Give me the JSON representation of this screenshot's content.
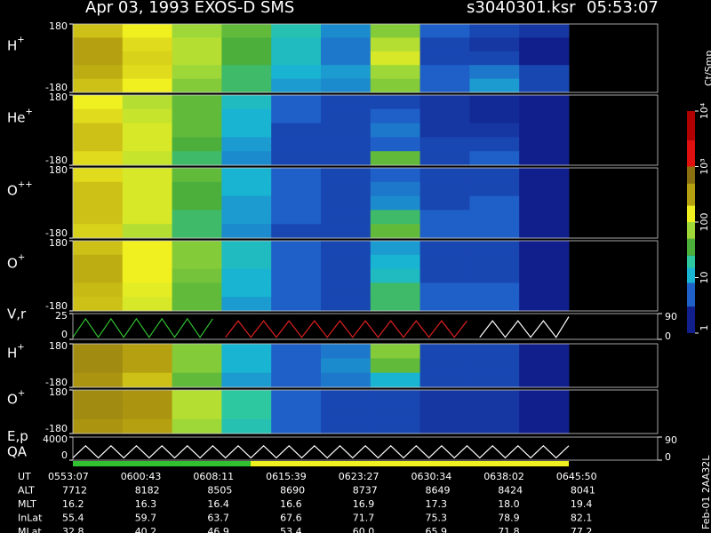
{
  "header": {
    "title": "Apr 03, 1993    EXOS-D SMS",
    "file": "s3040301.ksr",
    "time": "05:53:07"
  },
  "chart_data": [
    {
      "type": "heatmap",
      "label": "H",
      "label_sup": "+",
      "ylim": [
        -180,
        180
      ],
      "yticks": [
        -180,
        180
      ],
      "values": [
        [
          150,
          100,
          50,
          30,
          12,
          5,
          40,
          3,
          2,
          1.5
        ],
        [
          200,
          120,
          60,
          25,
          10,
          4,
          60,
          2,
          1.5,
          1
        ],
        [
          200,
          130,
          60,
          25,
          10,
          4,
          80,
          2,
          2,
          1
        ],
        [
          180,
          120,
          50,
          20,
          8,
          6,
          50,
          3,
          4,
          2
        ],
        [
          150,
          100,
          40,
          20,
          6,
          5,
          40,
          3,
          6,
          2
        ]
      ]
    },
    {
      "type": "heatmap",
      "label": "He",
      "label_sup": "+",
      "ylim": [
        -180,
        180
      ],
      "yticks": [
        -180,
        180
      ],
      "values": [
        [
          100,
          60,
          30,
          10,
          3,
          2,
          2,
          1.5,
          1.2,
          1
        ],
        [
          120,
          70,
          30,
          8,
          3,
          2,
          3,
          1.5,
          1.2,
          1
        ],
        [
          150,
          80,
          30,
          8,
          2,
          2,
          4,
          1.5,
          1.5,
          1
        ],
        [
          150,
          80,
          25,
          6,
          2,
          2,
          3,
          2,
          2,
          1
        ],
        [
          120,
          70,
          20,
          5,
          2,
          2,
          30,
          2,
          3,
          1
        ]
      ]
    },
    {
      "type": "heatmap",
      "label": "O",
      "label_sup": "++",
      "ylim": [
        -180,
        180
      ],
      "yticks": [
        -180,
        180
      ],
      "values": [
        [
          120,
          80,
          30,
          8,
          3,
          2,
          3,
          2,
          2,
          1
        ],
        [
          150,
          80,
          25,
          8,
          3,
          2,
          4,
          2,
          2,
          1
        ],
        [
          150,
          80,
          25,
          6,
          3,
          2,
          5,
          2,
          3,
          1
        ],
        [
          150,
          80,
          20,
          6,
          3,
          2,
          20,
          3,
          3,
          1
        ],
        [
          130,
          60,
          20,
          5,
          2,
          2,
          30,
          3,
          3,
          1
        ]
      ]
    },
    {
      "type": "heatmap",
      "label": "O",
      "label_sup": "+",
      "ylim": [
        -180,
        180
      ],
      "yticks": [
        -180,
        180
      ],
      "values": [
        [
          150,
          100,
          40,
          10,
          3,
          2,
          6,
          2,
          2,
          1
        ],
        [
          180,
          100,
          40,
          10,
          3,
          2,
          8,
          2,
          2,
          1
        ],
        [
          180,
          100,
          35,
          8,
          3,
          2,
          10,
          2,
          2,
          1
        ],
        [
          160,
          90,
          30,
          8,
          3,
          2,
          20,
          3,
          3,
          1
        ],
        [
          150,
          80,
          30,
          6,
          3,
          2,
          20,
          3,
          3,
          1
        ]
      ]
    },
    {
      "type": "line",
      "label": "V,r",
      "ylim": [
        0,
        25
      ],
      "yticks": [
        0,
        25
      ],
      "y2lim": [
        0,
        90
      ],
      "y2ticks": [
        0,
        90
      ],
      "series": [
        {
          "color": "#30c030",
          "values": [
            2,
            20,
            2,
            20,
            2,
            20,
            2,
            20,
            2,
            20,
            2,
            20,
            null,
            null,
            null,
            null,
            null,
            null,
            null,
            null,
            null,
            null,
            null,
            null,
            null,
            null,
            null,
            null,
            null,
            null,
            null,
            null,
            null,
            null,
            null,
            null,
            null,
            null,
            null,
            null
          ]
        },
        {
          "color": "#e02020",
          "values": [
            null,
            null,
            null,
            null,
            null,
            null,
            null,
            null,
            null,
            null,
            null,
            null,
            2,
            18,
            2,
            18,
            2,
            18,
            2,
            18,
            2,
            18,
            2,
            18,
            2,
            18,
            2,
            18,
            2,
            18,
            2,
            18,
            null,
            null,
            null,
            null,
            null,
            null,
            null,
            null
          ]
        },
        {
          "color": "#ffffff",
          "values": [
            null,
            null,
            null,
            null,
            null,
            null,
            null,
            null,
            null,
            null,
            null,
            null,
            null,
            null,
            null,
            null,
            null,
            null,
            null,
            null,
            null,
            null,
            null,
            null,
            null,
            null,
            null,
            null,
            null,
            null,
            null,
            null,
            2,
            18,
            2,
            18,
            2,
            18,
            2,
            22
          ]
        }
      ]
    },
    {
      "type": "heatmap",
      "label": "H",
      "label_sup": "+",
      "ylim": [
        -180,
        180
      ],
      "yticks": [
        -180,
        180
      ],
      "values": [
        [
          300,
          200,
          40,
          8,
          3,
          4,
          40,
          2,
          2,
          1
        ],
        [
          300,
          200,
          40,
          8,
          3,
          5,
          30,
          2,
          2,
          1
        ],
        [
          250,
          150,
          30,
          6,
          3,
          4,
          8,
          2,
          2,
          1
        ]
      ]
    },
    {
      "type": "heatmap",
      "label": "O",
      "label_sup": "+",
      "ylim": [
        -180,
        180
      ],
      "yticks": [
        -180,
        180
      ],
      "values": [
        [
          300,
          250,
          60,
          15,
          3,
          2,
          2,
          1.5,
          1.5,
          1
        ],
        [
          300,
          250,
          60,
          15,
          3,
          2,
          2,
          1.5,
          1.5,
          1
        ],
        [
          250,
          200,
          50,
          12,
          3,
          2,
          2,
          1.5,
          1.5,
          1
        ]
      ]
    },
    {
      "type": "line",
      "label": "E,p",
      "label2": "QA",
      "ylim": [
        0,
        4000
      ],
      "yticks": [
        0,
        4000
      ],
      "y2lim": [
        0,
        90
      ],
      "y2ticks": [
        0,
        90
      ],
      "series": [
        {
          "color": "#ffffff",
          "values": [
            400,
            2500,
            400,
            2500,
            400,
            2500,
            400,
            2500,
            400,
            2500,
            400,
            2500,
            400,
            2500,
            400,
            2500,
            400,
            2500,
            400,
            2500,
            400,
            2500,
            400,
            2500,
            400,
            2500,
            400,
            2500,
            400,
            2500,
            400,
            2500,
            400,
            2500,
            400,
            2500,
            400,
            2500,
            400,
            2500
          ]
        }
      ]
    }
  ],
  "colorbar": {
    "title": "Ct/Smp",
    "stops": [
      {
        "value": 1,
        "color": "#101f8c"
      },
      {
        "value": 3,
        "color": "#1f5fc8"
      },
      {
        "value": 8,
        "color": "#19b4d2"
      },
      {
        "value": 15,
        "color": "#2ec8a0"
      },
      {
        "value": 25,
        "color": "#4caf3c"
      },
      {
        "value": 50,
        "color": "#9ed838"
      },
      {
        "value": 100,
        "color": "#f0f020"
      },
      {
        "value": 200,
        "color": "#b4a010"
      },
      {
        "value": 500,
        "color": "#8a7010"
      },
      {
        "value": 1000,
        "color": "#e01010"
      },
      {
        "value": 3000,
        "color": "#b00000"
      },
      {
        "value": 10000,
        "color": "#ffffff"
      }
    ],
    "ticks": [
      1,
      10,
      100,
      {
        "value": 1000,
        "label": "10³"
      },
      {
        "value": 10000,
        "label": "10⁴"
      }
    ]
  },
  "table": {
    "rows": [
      {
        "label": "UT",
        "values": [
          "0553:07",
          "0600:43",
          "0608:11",
          "0615:39",
          "0623:27",
          "0630:34",
          "0638:02",
          "0645:50"
        ]
      },
      {
        "label": "ALT",
        "values": [
          "7712",
          "8182",
          "8505",
          "8690",
          "8737",
          "8649",
          "8424",
          "8041"
        ]
      },
      {
        "label": "MLT",
        "values": [
          "16.2",
          "16.3",
          "16.4",
          "16.6",
          "16.9",
          "17.3",
          "18.0",
          "19.4"
        ]
      },
      {
        "label": "InLat",
        "values": [
          "55.4",
          "59.7",
          "63.7",
          "67.6",
          "71.7",
          "75.3",
          "78.9",
          "82.1"
        ]
      },
      {
        "label": "MLat",
        "values": [
          "32.8",
          "40.2",
          "46.9",
          "53.4",
          "60.0",
          "65.9",
          "71.8",
          "77.2"
        ]
      }
    ]
  },
  "footer_id": "Feb-01 2AA32L"
}
